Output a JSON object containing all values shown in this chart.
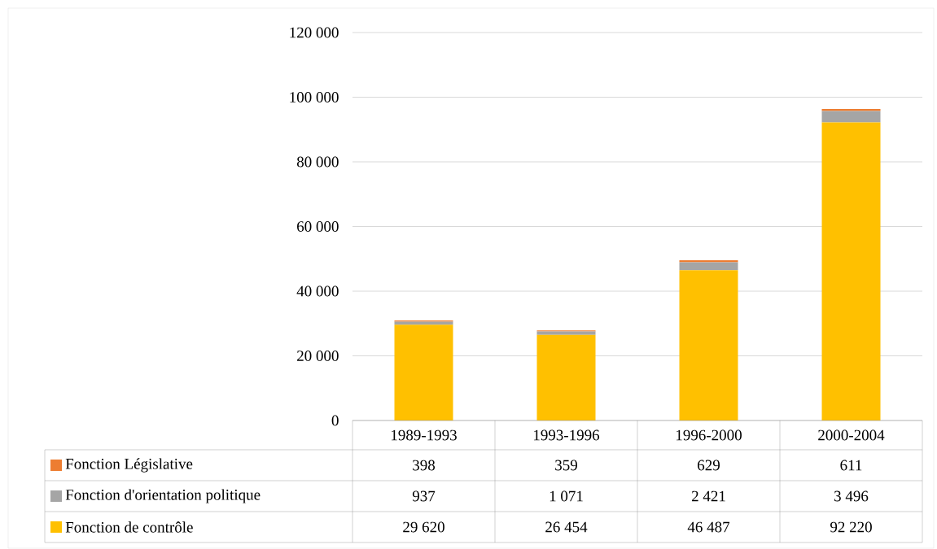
{
  "chart_data": {
    "type": "bar",
    "stacked": true,
    "categories": [
      "1989-1993",
      "1993-1996",
      "1996-2000",
      "2000-2004"
    ],
    "series": [
      {
        "name": "Fonction de contrôle",
        "color": "#ffc000",
        "values": [
          29620,
          26454,
          46487,
          92220
        ]
      },
      {
        "name": "Fonction d'orientation politique",
        "color": "#a5a5a5",
        "values": [
          937,
          1071,
          2421,
          3496
        ]
      },
      {
        "name": "Fonction Législative",
        "color": "#ed7d31",
        "values": [
          398,
          359,
          629,
          611
        ]
      }
    ],
    "ylim": [
      0,
      120000
    ],
    "yticks": [
      0,
      {
        "value": 20000,
        "label": "20 000"
      },
      {
        "value": 40000,
        "label": "40 000"
      },
      {
        "value": 60000,
        "label": "60 000"
      },
      {
        "value": 80000,
        "label": "80 000"
      },
      {
        "value": 100000,
        "label": "100 000"
      },
      {
        "value": 120000,
        "label": "120 000"
      }
    ],
    "grid": "y",
    "legend": "bottom",
    "data_labels": true
  }
}
